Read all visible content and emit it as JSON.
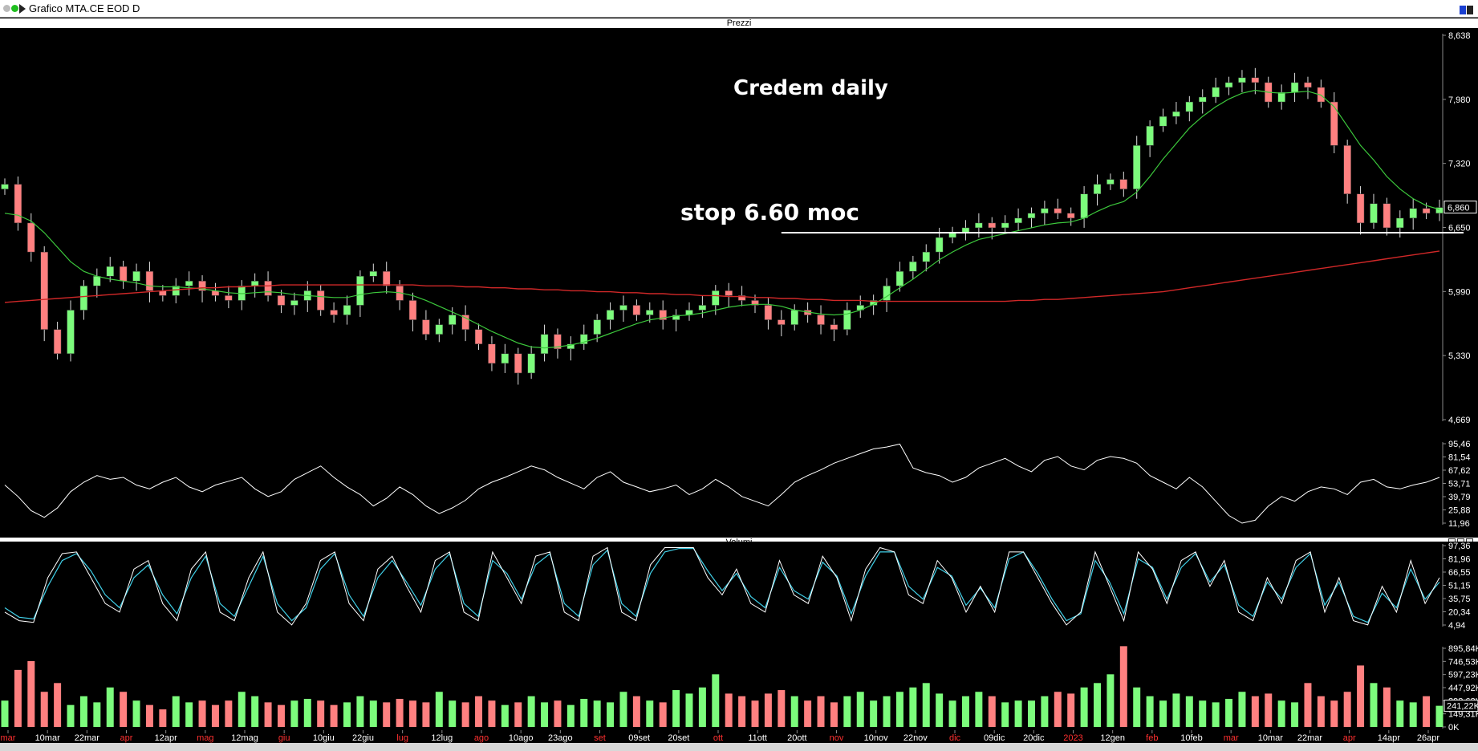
{
  "window": {
    "title": "Grafico MTA.CE EOD D"
  },
  "panels": {
    "prices_label": "Prezzi",
    "rsi_label": "...",
    "stoch_label": "...",
    "volume_label": "Volumi"
  },
  "annotations": {
    "chart_title": "Credem daily",
    "stop_note": "stop 6.60 moc"
  },
  "colors": {
    "background": "#000000",
    "up_candle": "#7CFC7C",
    "down_candle": "#FF8080",
    "ma_short": "#3CC83C",
    "ma_long": "#D02828",
    "support_line": "#FFFFFF",
    "stoch_k": "#FFFFFF",
    "stoch_d": "#40D0E8"
  },
  "chart_data": [
    {
      "type": "candlestick",
      "name": "Prezzi",
      "title": "Credem daily",
      "y_ticks": [
        "8,638",
        "7,980",
        "7,320",
        "6,650",
        "5,990",
        "5,330",
        "4,669"
      ],
      "y_tick_values": [
        8.638,
        7.98,
        7.32,
        6.65,
        5.99,
        5.33,
        4.669
      ],
      "ylim": [
        4.669,
        8.638
      ],
      "last_price_label": "6,860",
      "support_level": 6.6,
      "series": [
        {
          "name": "Close",
          "values": [
            7.1,
            6.7,
            6.4,
            5.6,
            5.35,
            5.8,
            6.05,
            6.15,
            6.25,
            6.1,
            6.2,
            6.0,
            5.95,
            6.05,
            6.1,
            6.0,
            5.95,
            5.9,
            6.05,
            6.1,
            5.95,
            5.85,
            5.9,
            6.0,
            5.8,
            5.75,
            5.85,
            6.15,
            6.2,
            6.05,
            5.9,
            5.7,
            5.55,
            5.65,
            5.75,
            5.6,
            5.45,
            5.25,
            5.35,
            5.15,
            5.35,
            5.55,
            5.4,
            5.45,
            5.55,
            5.7,
            5.8,
            5.85,
            5.75,
            5.8,
            5.7,
            5.75,
            5.8,
            5.85,
            6.0,
            5.95,
            5.9,
            5.85,
            5.7,
            5.65,
            5.8,
            5.75,
            5.65,
            5.6,
            5.8,
            5.85,
            5.9,
            6.05,
            6.2,
            6.3,
            6.4,
            6.55,
            6.6,
            6.65,
            6.7,
            6.65,
            6.7,
            6.75,
            6.8,
            6.85,
            6.8,
            6.75,
            7.0,
            7.1,
            7.15,
            7.05,
            7.5,
            7.7,
            7.8,
            7.85,
            7.95,
            8.0,
            8.1,
            8.15,
            8.2,
            8.15,
            7.95,
            8.05,
            8.15,
            8.1,
            7.95,
            7.5,
            7.0,
            6.7,
            6.9,
            6.65,
            6.75,
            6.85,
            6.8,
            6.86
          ]
        },
        {
          "name": "Short moving average",
          "values": [
            6.8,
            6.78,
            6.72,
            6.6,
            6.45,
            6.3,
            6.2,
            6.15,
            6.12,
            6.1,
            6.08,
            6.05,
            6.04,
            6.04,
            6.03,
            6.02,
            6.0,
            5.98,
            5.97,
            5.98,
            5.99,
            5.98,
            5.96,
            5.95,
            5.94,
            5.93,
            5.93,
            5.96,
            5.98,
            5.99,
            5.98,
            5.95,
            5.9,
            5.84,
            5.78,
            5.72,
            5.65,
            5.58,
            5.52,
            5.46,
            5.42,
            5.41,
            5.42,
            5.44,
            5.47,
            5.51,
            5.56,
            5.61,
            5.66,
            5.7,
            5.72,
            5.74,
            5.75,
            5.77,
            5.8,
            5.83,
            5.85,
            5.86,
            5.86,
            5.84,
            5.8,
            5.78,
            5.76,
            5.75,
            5.76,
            5.8,
            5.86,
            5.94,
            6.03,
            6.12,
            6.22,
            6.32,
            6.4,
            6.47,
            6.53,
            6.56,
            6.59,
            6.62,
            6.65,
            6.68,
            6.7,
            6.71,
            6.75,
            6.82,
            6.88,
            6.92,
            7.02,
            7.18,
            7.36,
            7.52,
            7.68,
            7.8,
            7.9,
            7.98,
            8.04,
            8.07,
            8.05,
            8.04,
            8.05,
            8.06,
            8.02,
            7.9,
            7.7,
            7.5,
            7.35,
            7.18,
            7.05,
            6.95,
            6.88,
            6.84
          ]
        },
        {
          "name": "Long moving average",
          "values": [
            5.88,
            5.89,
            5.9,
            5.91,
            5.92,
            5.93,
            5.94,
            5.95,
            5.96,
            5.97,
            5.98,
            5.99,
            6.0,
            6.01,
            6.02,
            6.03,
            6.03,
            6.04,
            6.04,
            6.05,
            6.05,
            6.06,
            6.06,
            6.06,
            6.06,
            6.06,
            6.06,
            6.06,
            6.06,
            6.06,
            6.06,
            6.06,
            6.05,
            6.05,
            6.05,
            6.04,
            6.04,
            6.03,
            6.03,
            6.02,
            6.02,
            6.01,
            6.01,
            6.0,
            6.0,
            5.99,
            5.99,
            5.98,
            5.98,
            5.97,
            5.97,
            5.96,
            5.96,
            5.95,
            5.95,
            5.94,
            5.94,
            5.93,
            5.93,
            5.92,
            5.92,
            5.91,
            5.91,
            5.9,
            5.9,
            5.9,
            5.89,
            5.89,
            5.89,
            5.89,
            5.89,
            5.89,
            5.89,
            5.89,
            5.89,
            5.89,
            5.89,
            5.9,
            5.9,
            5.91,
            5.91,
            5.92,
            5.93,
            5.94,
            5.95,
            5.96,
            5.97,
            5.98,
            5.99,
            6.01,
            6.03,
            6.05,
            6.07,
            6.09,
            6.11,
            6.13,
            6.15,
            6.17,
            6.19,
            6.21,
            6.23,
            6.25,
            6.27,
            6.29,
            6.31,
            6.33,
            6.35,
            6.37,
            6.39,
            6.41
          ]
        }
      ],
      "x_labels": [
        "mar",
        "10mar",
        "22mar",
        "apr",
        "12apr",
        "mag",
        "12mag",
        "giu",
        "10giu",
        "22giu",
        "lug",
        "12lug",
        "ago",
        "10ago",
        "23ago",
        "set",
        "09set",
        "20set",
        "ott",
        "11ott",
        "20ott",
        "nov",
        "10nov",
        "22nov",
        "dic",
        "09dic",
        "20dic",
        "2023",
        "12gen",
        "feb",
        "10feb",
        "mar",
        "10mar",
        "22mar",
        "apr",
        "14apr",
        "26apr"
      ],
      "x_label_red": [
        true,
        false,
        false,
        true,
        false,
        true,
        false,
        true,
        false,
        false,
        true,
        false,
        true,
        false,
        false,
        true,
        false,
        false,
        true,
        false,
        false,
        true,
        false,
        false,
        true,
        false,
        false,
        true,
        false,
        true,
        false,
        true,
        false,
        false,
        true,
        false,
        false
      ]
    },
    {
      "type": "line",
      "name": "RSI",
      "y_ticks": [
        "95,46",
        "81,54",
        "67,62",
        "53,71",
        "39,79",
        "25,88",
        "11,96"
      ],
      "ylim": [
        11.96,
        95.46
      ],
      "values": [
        52,
        40,
        25,
        18,
        28,
        45,
        55,
        62,
        58,
        60,
        52,
        48,
        55,
        60,
        50,
        45,
        52,
        56,
        60,
        48,
        40,
        45,
        58,
        65,
        72,
        60,
        50,
        42,
        30,
        38,
        50,
        42,
        30,
        22,
        28,
        36,
        48,
        55,
        60,
        66,
        72,
        68,
        60,
        54,
        48,
        60,
        66,
        55,
        50,
        45,
        48,
        52,
        42,
        48,
        58,
        50,
        40,
        35,
        30,
        42,
        55,
        62,
        68,
        75,
        80,
        85,
        90,
        92,
        95,
        70,
        65,
        62,
        55,
        60,
        70,
        75,
        80,
        72,
        66,
        78,
        82,
        72,
        68,
        78,
        82,
        80,
        75,
        62,
        55,
        48,
        60,
        50,
        35,
        20,
        12,
        15,
        30,
        40,
        35,
        45,
        50,
        48,
        42,
        55,
        58,
        50,
        48,
        52,
        55,
        60
      ]
    },
    {
      "type": "line",
      "name": "Stochastic",
      "y_ticks": [
        "97,36",
        "81,96",
        "66,55",
        "51,15",
        "35,75",
        "20,34",
        "4,94"
      ],
      "ylim": [
        4.94,
        97.36
      ],
      "series": [
        {
          "name": "%K",
          "values": [
            20,
            10,
            8,
            60,
            88,
            90,
            60,
            30,
            20,
            70,
            80,
            30,
            10,
            70,
            90,
            20,
            10,
            60,
            90,
            20,
            5,
            30,
            80,
            90,
            30,
            10,
            70,
            85,
            50,
            20,
            80,
            90,
            20,
            10,
            90,
            60,
            30,
            85,
            90,
            20,
            10,
            85,
            95,
            20,
            10,
            75,
            95,
            95,
            95,
            60,
            40,
            70,
            30,
            20,
            80,
            40,
            30,
            85,
            60,
            10,
            70,
            95,
            90,
            40,
            30,
            80,
            60,
            20,
            50,
            20,
            90,
            90,
            60,
            30,
            5,
            20,
            90,
            50,
            10,
            90,
            70,
            30,
            80,
            90,
            50,
            80,
            20,
            10,
            60,
            30,
            80,
            90,
            20,
            60,
            10,
            5,
            50,
            20,
            80,
            30,
            60
          ]
        },
        {
          "name": "%D",
          "values": [
            25,
            14,
            12,
            50,
            80,
            88,
            68,
            40,
            25,
            60,
            75,
            40,
            18,
            60,
            85,
            30,
            15,
            50,
            85,
            30,
            10,
            25,
            70,
            88,
            40,
            15,
            60,
            80,
            55,
            28,
            70,
            88,
            30,
            15,
            80,
            65,
            35,
            75,
            88,
            30,
            15,
            75,
            92,
            30,
            15,
            65,
            90,
            94,
            94,
            68,
            45,
            65,
            38,
            25,
            72,
            45,
            35,
            78,
            62,
            18,
            62,
            90,
            90,
            50,
            35,
            72,
            62,
            28,
            48,
            25,
            82,
            90,
            65,
            35,
            10,
            18,
            80,
            55,
            18,
            82,
            72,
            35,
            72,
            88,
            55,
            75,
            28,
            15,
            55,
            35,
            72,
            88,
            28,
            55,
            15,
            8,
            42,
            25,
            70,
            35,
            55
          ]
        }
      ]
    },
    {
      "type": "bar",
      "name": "Volumi",
      "y_ticks": [
        "895,84K",
        "746,53K",
        "597,23K",
        "447,92K",
        "298,62K",
        "149,31K",
        "0K"
      ],
      "last_volume_label": "241,22K",
      "ylim": [
        0,
        895.84
      ],
      "values": [
        300,
        650,
        750,
        400,
        500,
        250,
        350,
        280,
        450,
        400,
        300,
        250,
        200,
        350,
        280,
        300,
        250,
        300,
        400,
        350,
        280,
        250,
        300,
        320,
        300,
        250,
        280,
        350,
        300,
        280,
        320,
        300,
        280,
        400,
        300,
        280,
        350,
        300,
        250,
        280,
        350,
        280,
        300,
        250,
        320,
        300,
        280,
        400,
        350,
        300,
        280,
        420,
        380,
        450,
        600,
        380,
        350,
        300,
        380,
        420,
        350,
        300,
        350,
        280,
        350,
        400,
        300,
        350,
        400,
        450,
        500,
        380,
        300,
        350,
        400,
        350,
        280,
        300,
        300,
        350,
        400,
        380,
        450,
        500,
        600,
        920,
        450,
        350,
        300,
        380,
        350,
        300,
        280,
        320,
        400,
        350,
        380,
        300,
        280,
        500,
        350,
        300,
        400,
        700,
        500,
        450,
        300,
        280,
        350,
        241
      ]
    }
  ]
}
